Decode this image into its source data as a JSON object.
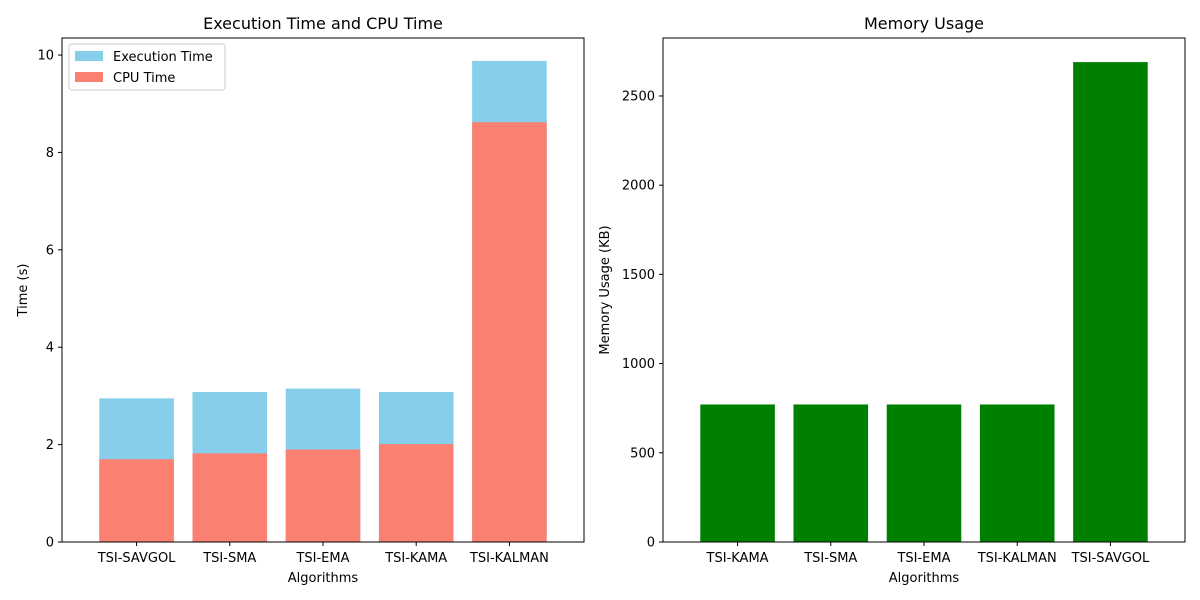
{
  "chart_data": [
    {
      "type": "bar",
      "stacked": "overlay",
      "title": "Execution Time and CPU Time",
      "xlabel": "Algorithms",
      "ylabel": "Time (s)",
      "ylim": [
        0,
        10.35
      ],
      "yticks": [
        0,
        2,
        4,
        6,
        8,
        10
      ],
      "categories": [
        "TSI-SAVGOL",
        "TSI-SMA",
        "TSI-EMA",
        "TSI-KAMA",
        "TSI-KALMAN"
      ],
      "series": [
        {
          "name": "Execution Time",
          "color": "#87ceeb",
          "values": [
            2.95,
            3.08,
            3.15,
            3.08,
            9.88
          ]
        },
        {
          "name": "CPU Time",
          "color": "#fa8072",
          "values": [
            1.7,
            1.82,
            1.9,
            2.01,
            8.62
          ]
        }
      ],
      "legend": "top-left",
      "grid": false
    },
    {
      "type": "bar",
      "title": "Memory Usage",
      "xlabel": "Algorithms",
      "ylabel": "Memory Usage (KB)",
      "ylim": [
        0,
        2825
      ],
      "yticks": [
        0,
        500,
        1000,
        1500,
        2000,
        2500
      ],
      "categories": [
        "TSI-KAMA",
        "TSI-SMA",
        "TSI-EMA",
        "TSI-KALMAN",
        "TSI-SAVGOL"
      ],
      "values": [
        771,
        771,
        771,
        771,
        2690
      ],
      "color": "#008000",
      "legend": "none",
      "grid": false
    }
  ]
}
